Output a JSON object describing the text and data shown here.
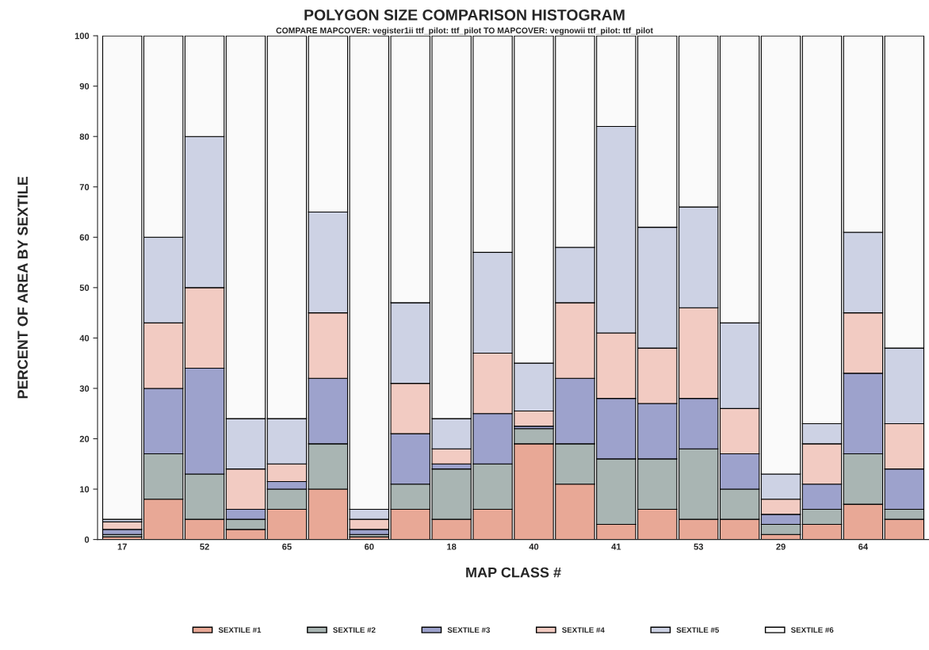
{
  "chart_data": {
    "type": "bar",
    "stacked": true,
    "title": "POLYGON SIZE COMPARISON HISTOGRAM",
    "subtitle": "COMPARE MAPCOVER: vegister1ii ttf_pilot: ttf_pilot TO MAPCOVER: vegnowii ttf_pilot: ttf_pilot",
    "xlabel": "MAP CLASS #",
    "ylabel": "PERCENT OF AREA BY SEXTILE",
    "categories": [
      "17",
      null,
      "52",
      null,
      "65",
      null,
      "60",
      null,
      "18",
      null,
      "40",
      null,
      "41",
      null,
      "53",
      null,
      "29",
      null,
      "64",
      null
    ],
    "series": [
      {
        "name": "SEXTILE #1",
        "color": "#e8a896",
        "values": [
          0.5,
          8,
          4,
          2,
          6,
          10,
          0.5,
          6,
          4,
          6,
          19,
          11,
          3,
          6,
          4,
          4,
          1,
          3,
          7,
          4
        ]
      },
      {
        "name": "SEXTILE #2",
        "color": "#a9b5b3",
        "values": [
          0.5,
          9,
          9,
          2,
          4,
          9,
          0.5,
          5,
          10,
          9,
          3,
          8,
          13,
          10,
          14,
          6,
          2,
          3,
          10,
          2
        ]
      },
      {
        "name": "SEXTILE #3",
        "color": "#9da2cc",
        "values": [
          1,
          13,
          21,
          2,
          1.5,
          13,
          1,
          10,
          1,
          10,
          0.5,
          13,
          12,
          11,
          10,
          7,
          2,
          5,
          16,
          8
        ]
      },
      {
        "name": "SEXTILE #4",
        "color": "#f2cbc2",
        "values": [
          1.5,
          13,
          16,
          8,
          3.5,
          13,
          2,
          10,
          3,
          12,
          3,
          15,
          13,
          11,
          18,
          9,
          3,
          8,
          12,
          9
        ]
      },
      {
        "name": "SEXTILE #5",
        "color": "#cdd2e4",
        "values": [
          0.5,
          17,
          30,
          10,
          9,
          20,
          2,
          16,
          6,
          20,
          9.5,
          11,
          41,
          24,
          20,
          17,
          5,
          4,
          16,
          15
        ]
      },
      {
        "name": "SEXTILE #6",
        "color": "#fafafa",
        "values": [
          96,
          40,
          20,
          76,
          76,
          35,
          94,
          53,
          76,
          43,
          65,
          42,
          18,
          38,
          34,
          57,
          87,
          77,
          39,
          62
        ]
      }
    ],
    "ylim": [
      0,
      100
    ],
    "yticks": [
      0,
      10,
      20,
      30,
      40,
      50,
      60,
      70,
      80,
      90,
      100
    ],
    "legend": "bottom"
  }
}
